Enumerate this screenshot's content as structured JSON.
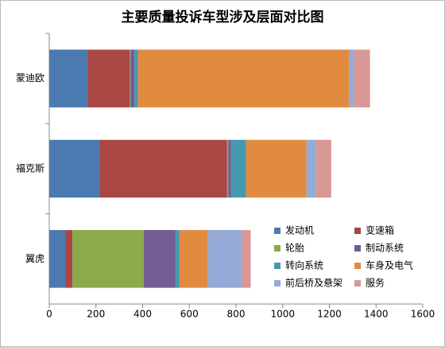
{
  "chart_data": {
    "type": "stacked-barh",
    "title": "主要质量投诉车型涉及层面对比图",
    "categories": [
      "蒙迪欧",
      "福克斯",
      "翼虎"
    ],
    "series": [
      {
        "name": "发动机",
        "color": "#4a7ab0",
        "values": [
          165,
          214,
          68
        ]
      },
      {
        "name": "变速箱",
        "color": "#a94744",
        "values": [
          180,
          548,
          31
        ]
      },
      {
        "name": "轮胎",
        "color": "#8aaa4b",
        "values": [
          3,
          5,
          306
        ]
      },
      {
        "name": "制动系统",
        "color": "#725c92",
        "values": [
          17,
          12,
          136
        ]
      },
      {
        "name": "转向系统",
        "color": "#4498b0",
        "values": [
          15,
          64,
          17
        ]
      },
      {
        "name": "车身及电气",
        "color": "#e08b3f",
        "values": [
          906,
          259,
          122
        ]
      },
      {
        "name": "前后桥及悬架",
        "color": "#95aad6",
        "values": [
          20,
          41,
          146
        ]
      },
      {
        "name": "服务",
        "color": "#d99795",
        "values": [
          68,
          65,
          37
        ]
      }
    ],
    "xlim": [
      0,
      1600
    ],
    "xticks": [
      0,
      200,
      400,
      600,
      800,
      1000,
      1200,
      1400,
      1600
    ],
    "legend": "lower right"
  }
}
